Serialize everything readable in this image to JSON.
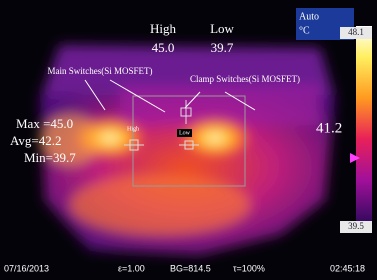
{
  "header": {
    "high_label": "High",
    "low_label": "Low",
    "high_value": "45.0",
    "low_value": "39.7"
  },
  "scale": {
    "mode": "Auto",
    "unit": "°C",
    "max": "48.1",
    "min": "39.5"
  },
  "spot_value": "41.2",
  "annotations": {
    "main_switches": "Main Switches(Si MOSFET)",
    "clamp_switches": "Clamp Switches(Si MOSFET)"
  },
  "stats": {
    "max": "Max =45.0",
    "avg": "Avg=42.2",
    "min": "Min=39.7"
  },
  "markers": {
    "high": "High",
    "low": "Low"
  },
  "footer": {
    "date": "07/16/2013",
    "emissivity": "ε=1.00",
    "background": "BG=814.5",
    "transmission": "τ=100%",
    "time": "02:45:18"
  }
}
